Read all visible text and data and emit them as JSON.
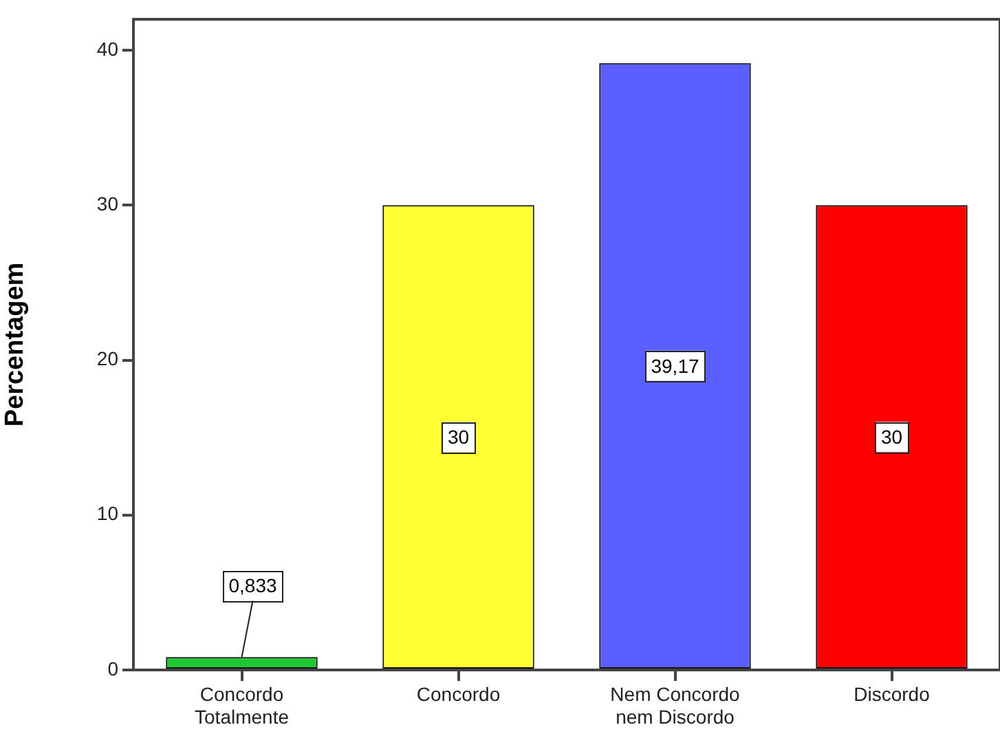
{
  "chart_data": {
    "type": "bar",
    "ylabel": "Percentagem",
    "categories": [
      "Concordo Totalmente",
      "Concordo",
      "Nem Concordo nem Discordo",
      "Discordo"
    ],
    "values": [
      0.833,
      30,
      39.17,
      30
    ],
    "colors": [
      "#1ec832",
      "#ffff33",
      "#5b5fff",
      "#ff0000"
    ],
    "value_labels": [
      "0,833",
      "30",
      "39,17",
      "30"
    ],
    "ylim": [
      0,
      42
    ],
    "yticks": [
      0,
      10,
      20,
      30,
      40
    ]
  }
}
